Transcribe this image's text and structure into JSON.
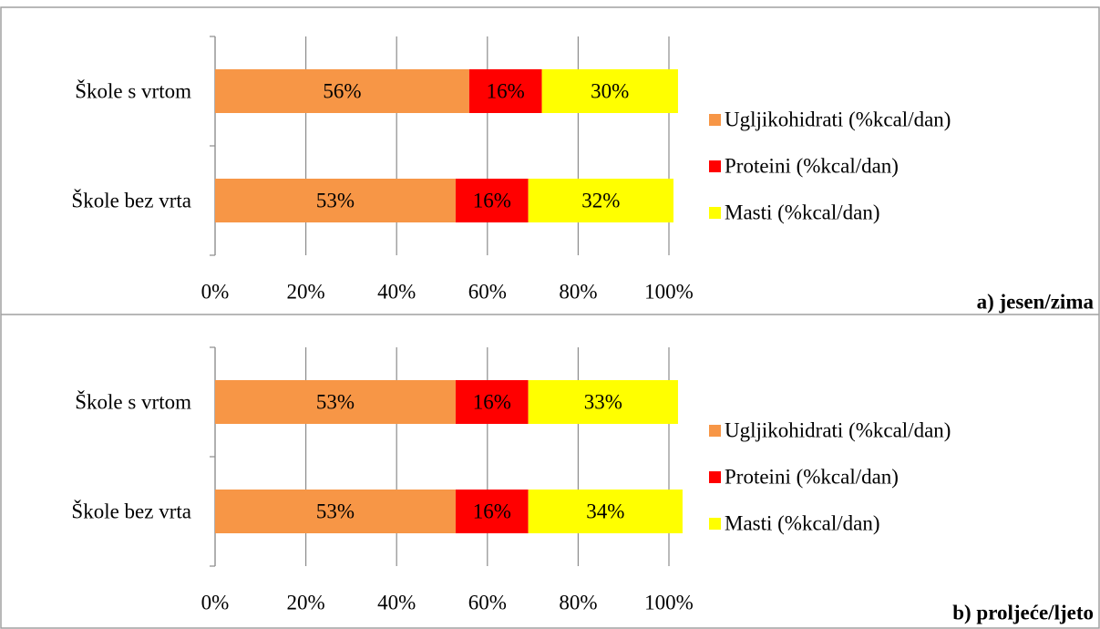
{
  "chart_data": [
    {
      "type": "bar",
      "orientation": "horizontal",
      "stacked": true,
      "title": "a) jesen/zima",
      "categories": [
        "Škole s vrtom",
        "Škole bez vrta"
      ],
      "series": [
        {
          "name": "Ugljikohidrati (%kcal/dan)",
          "color": "#f79646",
          "values": [
            56,
            53
          ],
          "value_labels": [
            "56%",
            "53%"
          ]
        },
        {
          "name": "Proteini (%kcal/dan)",
          "color": "#ff0000",
          "values": [
            16,
            16
          ],
          "value_labels": [
            "16%",
            "16%"
          ]
        },
        {
          "name": "Masti (%kcal/dan)",
          "color": "#ffff00",
          "values": [
            30,
            32
          ],
          "value_labels": [
            "30%",
            "32%"
          ]
        }
      ],
      "xlim": [
        0,
        100
      ],
      "xticks": [
        {
          "value": 0,
          "label": "0%"
        },
        {
          "value": 20,
          "label": "20%"
        },
        {
          "value": 40,
          "label": "40%"
        },
        {
          "value": 60,
          "label": "60%"
        },
        {
          "value": 80,
          "label": "80%"
        },
        {
          "value": 100,
          "label": "100%"
        }
      ],
      "grid": true,
      "legend": "right"
    },
    {
      "type": "bar",
      "orientation": "horizontal",
      "stacked": true,
      "title": "b) proljeće/ljeto",
      "categories": [
        "Škole s vrtom",
        "Škole bez vrta"
      ],
      "series": [
        {
          "name": "Ugljikohidrati (%kcal/dan)",
          "color": "#f79646",
          "values": [
            53,
            53
          ],
          "value_labels": [
            "53%",
            "53%"
          ]
        },
        {
          "name": "Proteini (%kcal/dan)",
          "color": "#ff0000",
          "values": [
            16,
            16
          ],
          "value_labels": [
            "16%",
            "16%"
          ]
        },
        {
          "name": "Masti (%kcal/dan)",
          "color": "#ffff00",
          "values": [
            33,
            34
          ],
          "value_labels": [
            "33%",
            "34%"
          ]
        }
      ],
      "xlim": [
        0,
        100
      ],
      "xticks": [
        {
          "value": 0,
          "label": "0%"
        },
        {
          "value": 20,
          "label": "20%"
        },
        {
          "value": 40,
          "label": "40%"
        },
        {
          "value": 60,
          "label": "60%"
        },
        {
          "value": 80,
          "label": "80%"
        },
        {
          "value": 100,
          "label": "100%"
        }
      ],
      "grid": true,
      "legend": "right"
    }
  ]
}
